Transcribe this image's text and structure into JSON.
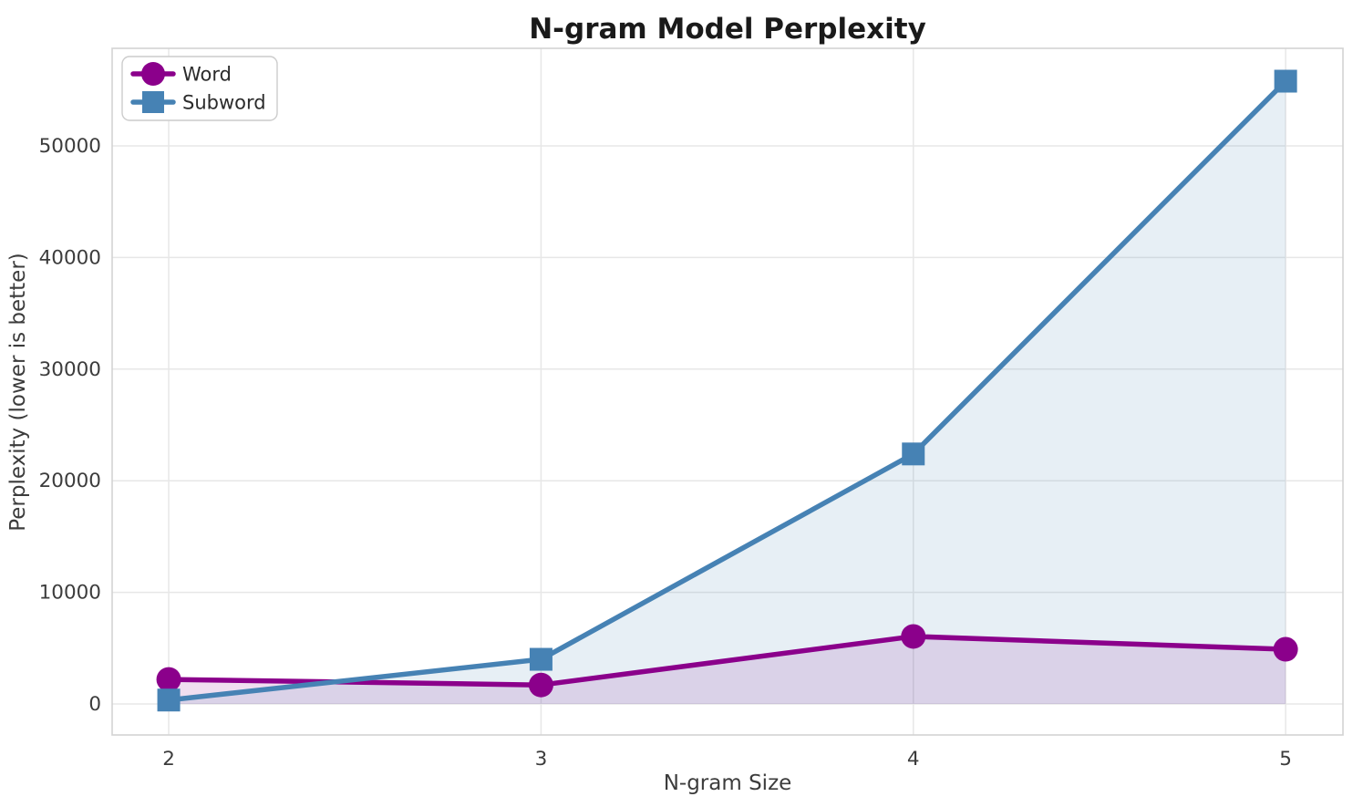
{
  "chart_data": {
    "type": "line",
    "title": "N-gram Model Perplexity",
    "xlabel": "N-gram Size",
    "ylabel": "Perplexity (lower is better)",
    "x": [
      2,
      3,
      4,
      5
    ],
    "x_tick_labels": [
      "2",
      "3",
      "4",
      "5"
    ],
    "y_ticks": [
      0,
      10000,
      20000,
      30000,
      40000,
      50000
    ],
    "y_tick_labels": [
      "0",
      "10000",
      "20000",
      "30000",
      "40000",
      "50000"
    ],
    "xlim": [
      1.848,
      5.154
    ],
    "ylim": [
      -2778,
      58742
    ],
    "grid": true,
    "legend": {
      "position": "upper-left",
      "entries": [
        "Word",
        "Subword"
      ]
    },
    "series": [
      {
        "name": "Word",
        "marker": "circle",
        "color": "#8B008B",
        "fill_color": "rgba(139,0,139,0.13)",
        "values": [
          2200,
          1700,
          6050,
          4900
        ]
      },
      {
        "name": "Subword",
        "marker": "square",
        "color": "#4682B4",
        "fill_color": "rgba(70,130,180,0.13)",
        "values": [
          350,
          4000,
          22400,
          55800
        ]
      }
    ]
  },
  "colors": {
    "background": "#ffffff",
    "grid": "#e7e7e7",
    "spine": "#d3d3d3",
    "title": "#1a1a1a",
    "label": "#3c3c3c",
    "legend_border": "#cccccc",
    "legend_bg": "#ffffff"
  }
}
